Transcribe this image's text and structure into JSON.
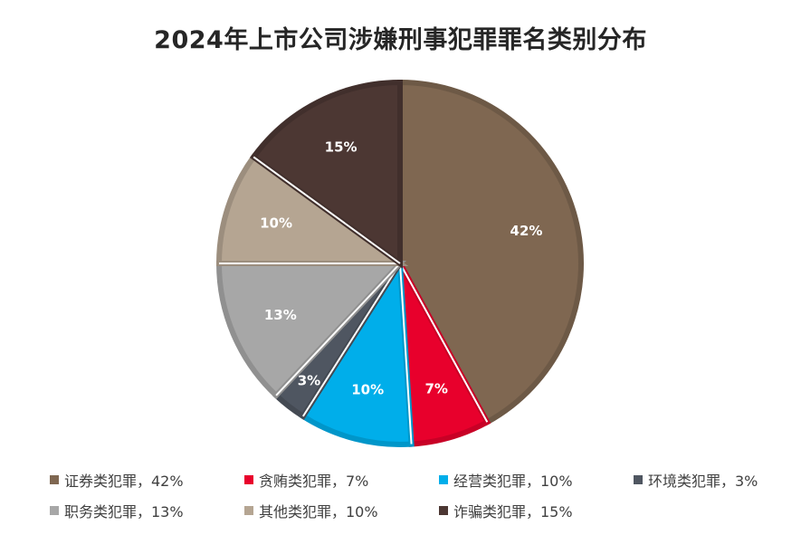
{
  "chart_data": {
    "type": "pie",
    "title": "2024年上市公司涉嫌刑事犯罪罪名类别分布",
    "slices": [
      {
        "name": "证券类犯罪",
        "value": 42,
        "label": "42%",
        "color": "#7f6751",
        "legend": "证券类犯罪，42%"
      },
      {
        "name": "贪贿类犯罪",
        "value": 7,
        "label": "7%",
        "color": "#e8002c",
        "legend": "贪贿类犯罪，7%"
      },
      {
        "name": "经营类犯罪",
        "value": 10,
        "label": "10%",
        "color": "#00aeea",
        "legend": "经营类犯罪，10%"
      },
      {
        "name": "环境类犯罪",
        "value": 3,
        "label": "3%",
        "color": "#4f5661",
        "legend": "环境类犯罪，3%"
      },
      {
        "name": "职务类犯罪",
        "value": 13,
        "label": "13%",
        "color": "#a7a7a7",
        "legend": "职务类犯罪，13%"
      },
      {
        "name": "其他类犯罪",
        "value": 10,
        "label": "10%",
        "color": "#b5a592",
        "legend": "其他类犯罪，10%"
      },
      {
        "name": "诈骗类犯罪",
        "value": 15,
        "label": "15%",
        "color": "#4c3733",
        "legend": "诈骗类犯罪，15%"
      }
    ],
    "legend_position": "bottom"
  }
}
